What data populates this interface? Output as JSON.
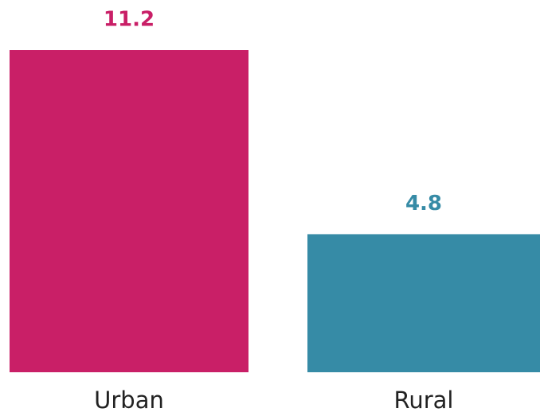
{
  "chart_data": {
    "type": "bar",
    "categories": [
      "Urban",
      "Rural"
    ],
    "values": [
      11.2,
      4.8
    ],
    "colors": [
      "#c91f67",
      "#368ba6"
    ]
  }
}
